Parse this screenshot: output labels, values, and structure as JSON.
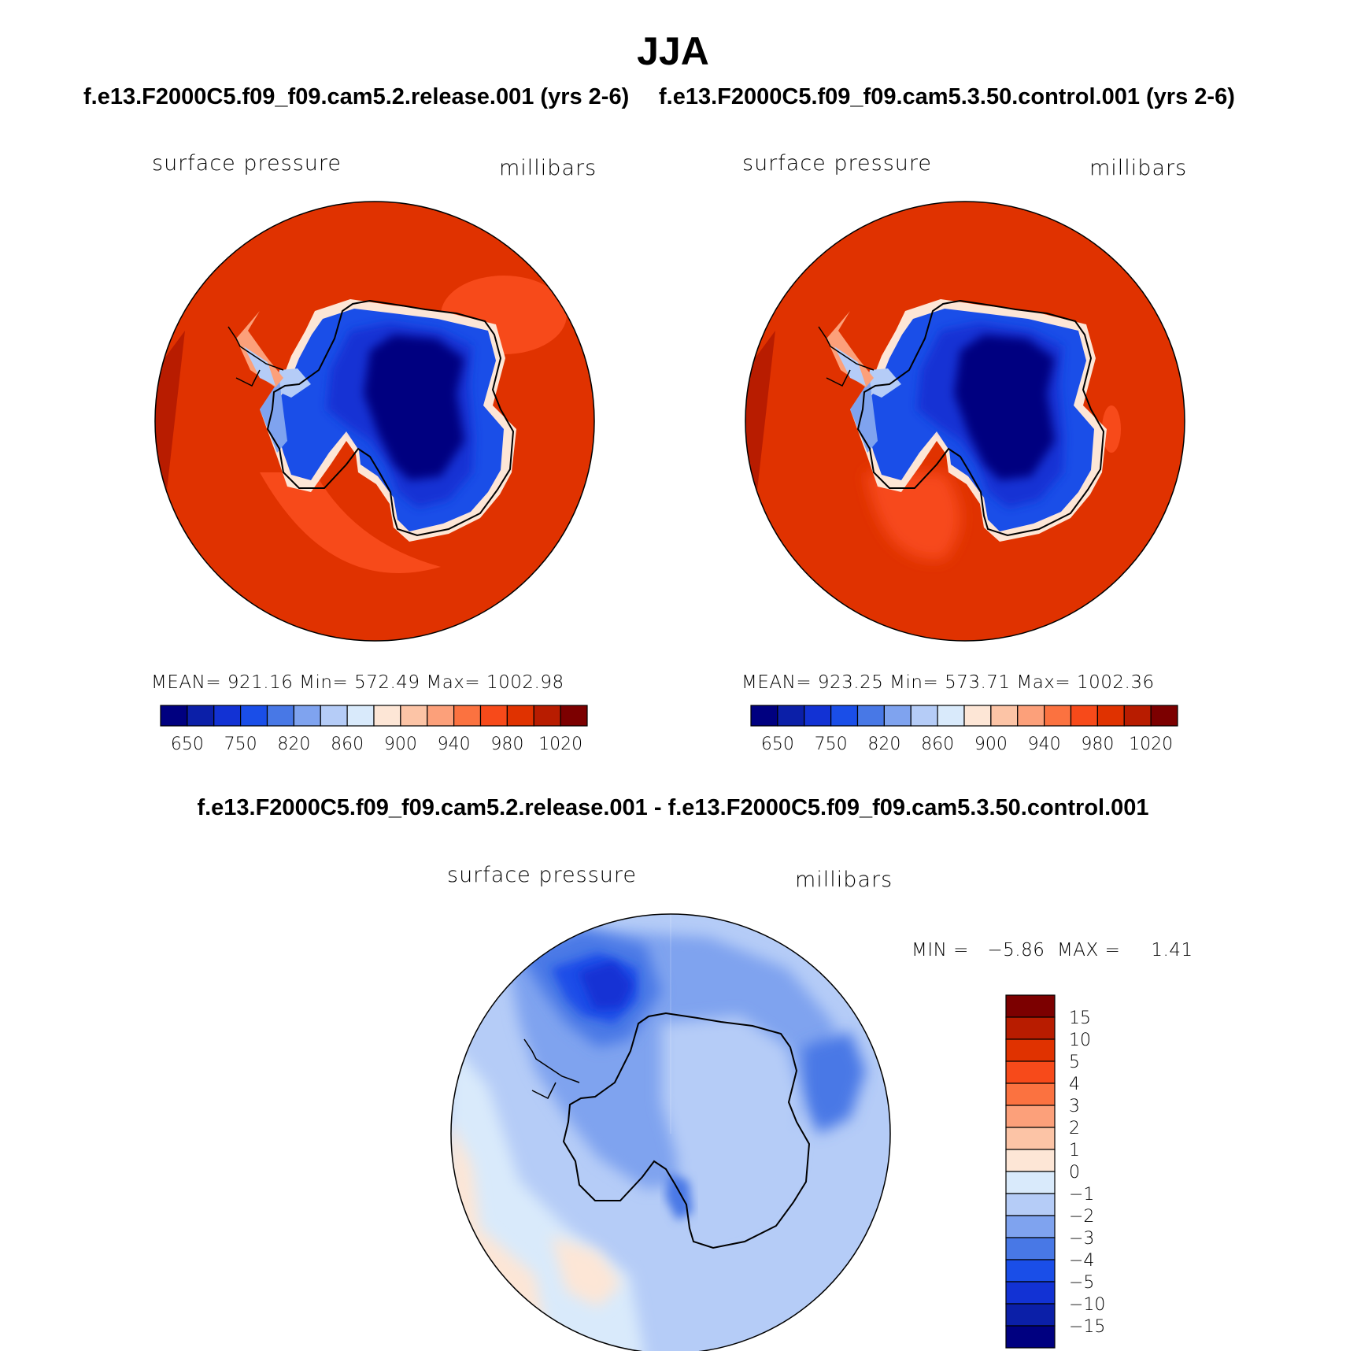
{
  "title": "JJA",
  "panels": [
    {
      "case": "f.e13.F2000C5.f09_f09.cam5.2.release.001 (yrs 2-6)",
      "variable": "surface pressure",
      "units": "millibars",
      "stats_text": "MEAN= 921.16   Min= 572.49   Max= 1002.98"
    },
    {
      "case": "f.e13.F2000C5.f09_f09.cam5.3.50.control.001 (yrs 2-6)",
      "variable": "surface pressure",
      "units": "millibars",
      "stats_text": "MEAN= 923.25   Min= 573.71   Max= 1002.36"
    }
  ],
  "difference": {
    "title": "f.e13.F2000C5.f09_f09.cam5.2.release.001 - f.e13.F2000C5.f09_f09.cam5.3.50.control.001",
    "variable": "surface pressure",
    "units": "millibars",
    "minmax_text": "MIN =   −5.86  MAX =     1.41"
  },
  "chart_data": [
    {
      "type": "heatmap",
      "projection": "south polar stereographic",
      "title": "f.e13.F2000C5.f09_f09.cam5.2.release.001 (yrs 2-6)",
      "variable": "surface pressure",
      "units": "millibars",
      "mean": 921.16,
      "min": 572.49,
      "max": 1002.98,
      "colorbar": {
        "orientation": "horizontal",
        "tick_labels": [
          "650",
          "750",
          "820",
          "860",
          "900",
          "940",
          "980",
          "1020"
        ],
        "colors": [
          "#000080",
          "#0b1fa8",
          "#1232d4",
          "#1a4ee8",
          "#4878e6",
          "#7fa3ef",
          "#b5ccf7",
          "#d9eafb",
          "#fde6d6",
          "#fcc4a6",
          "#fca07a",
          "#fb7240",
          "#f74a1a",
          "#e03200",
          "#b81c00",
          "#7c0000"
        ]
      }
    },
    {
      "type": "heatmap",
      "projection": "south polar stereographic",
      "title": "f.e13.F2000C5.f09_f09.cam5.3.50.control.001 (yrs 2-6)",
      "variable": "surface pressure",
      "units": "millibars",
      "mean": 923.25,
      "min": 573.71,
      "max": 1002.36,
      "colorbar": {
        "orientation": "horizontal",
        "tick_labels": [
          "650",
          "750",
          "820",
          "860",
          "900",
          "940",
          "980",
          "1020"
        ],
        "colors": [
          "#000080",
          "#0b1fa8",
          "#1232d4",
          "#1a4ee8",
          "#4878e6",
          "#7fa3ef",
          "#b5ccf7",
          "#d9eafb",
          "#fde6d6",
          "#fcc4a6",
          "#fca07a",
          "#fb7240",
          "#f74a1a",
          "#e03200",
          "#b81c00",
          "#7c0000"
        ]
      }
    },
    {
      "type": "heatmap",
      "projection": "south polar stereographic",
      "title": "f.e13.F2000C5.f09_f09.cam5.2.release.001 - f.e13.F2000C5.f09_f09.cam5.3.50.control.001",
      "variable": "surface pressure",
      "units": "millibars",
      "min": -5.86,
      "max": 1.41,
      "colorbar": {
        "orientation": "vertical",
        "tick_labels": [
          "15",
          "10",
          "5",
          "4",
          "3",
          "2",
          "1",
          "0",
          "−1",
          "−2",
          "−3",
          "−4",
          "−5",
          "−10",
          "−15"
        ],
        "colors": [
          "#7c0000",
          "#b81c00",
          "#e03200",
          "#f74a1a",
          "#fb7240",
          "#fca07a",
          "#fcc4a6",
          "#fde6d6",
          "#d9eafb",
          "#b5ccf7",
          "#7fa3ef",
          "#4878e6",
          "#1a4ee8",
          "#1232d4",
          "#0b1fa8",
          "#000080"
        ]
      }
    }
  ]
}
